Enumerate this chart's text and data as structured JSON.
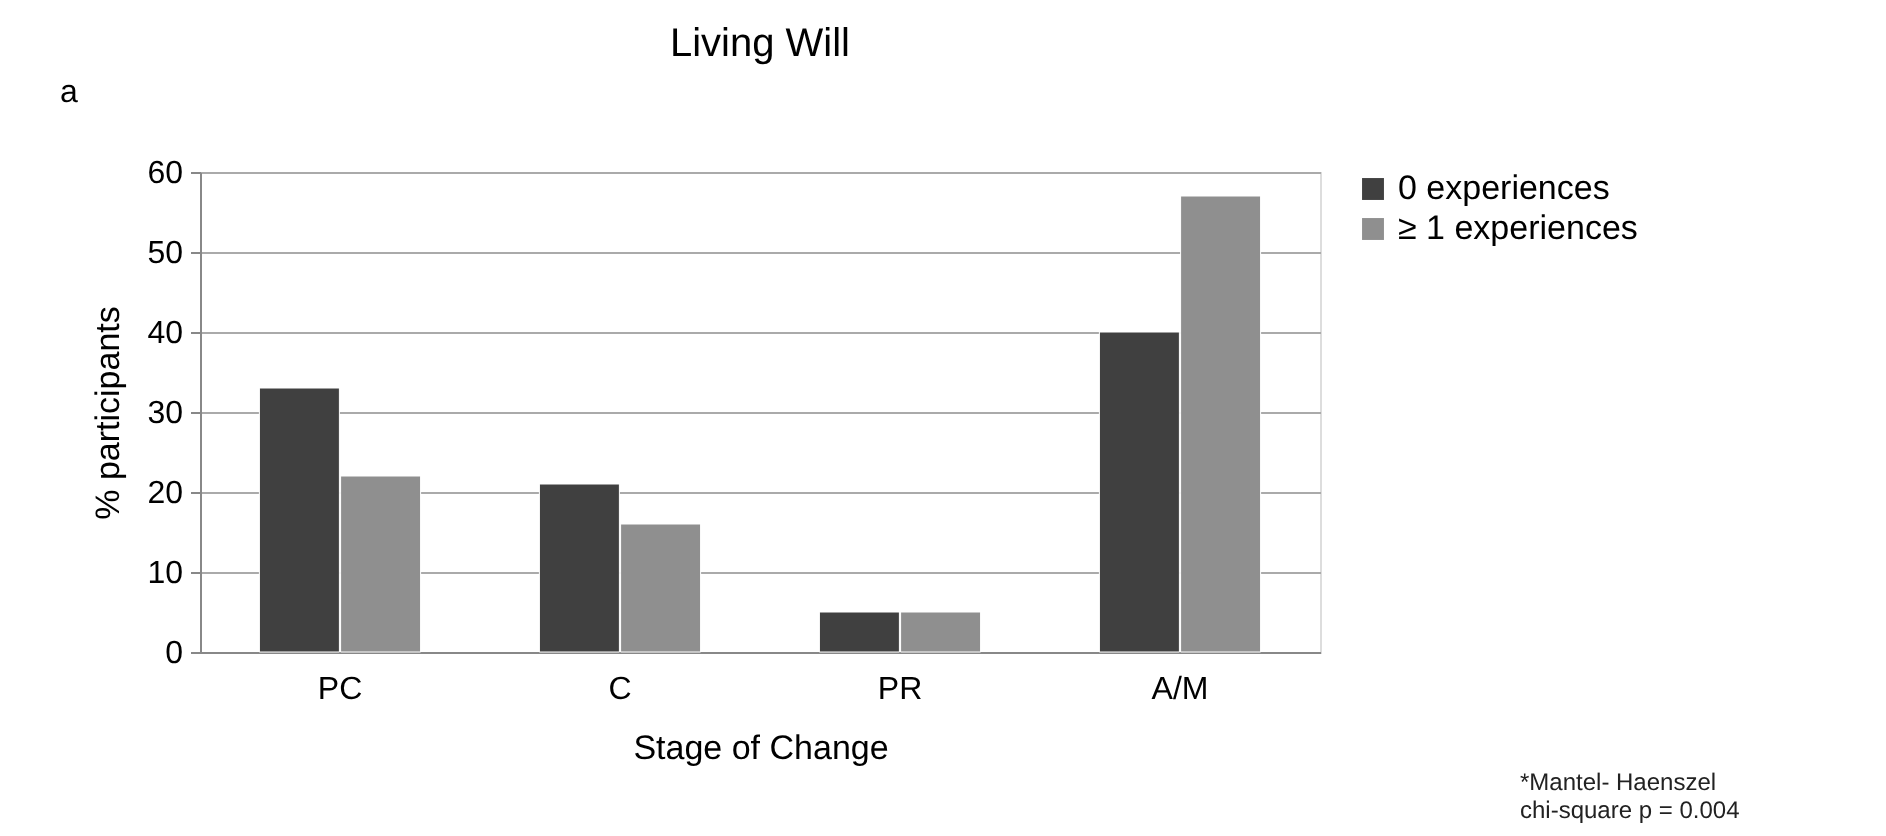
{
  "chart_data": {
    "type": "bar",
    "title": "Living Will",
    "xlabel": "Stage of Change",
    "ylabel": "% participants",
    "categories": [
      "PC",
      "C",
      "PR",
      "A/M"
    ],
    "series": [
      {
        "name": "0 experiences",
        "color": "#404040",
        "values": [
          33,
          21,
          5,
          40
        ]
      },
      {
        "name": "≥ 1 experiences",
        "color": "#8f8f8f",
        "values": [
          22,
          16,
          5,
          57
        ]
      }
    ],
    "ylim": [
      0,
      60
    ],
    "yticks": [
      0,
      10,
      20,
      30,
      40,
      50,
      60
    ],
    "grid": "y",
    "legend": "right",
    "annotations": [
      "a",
      "*Mantel- Haenszel\nchi-square p = 0.004"
    ]
  }
}
